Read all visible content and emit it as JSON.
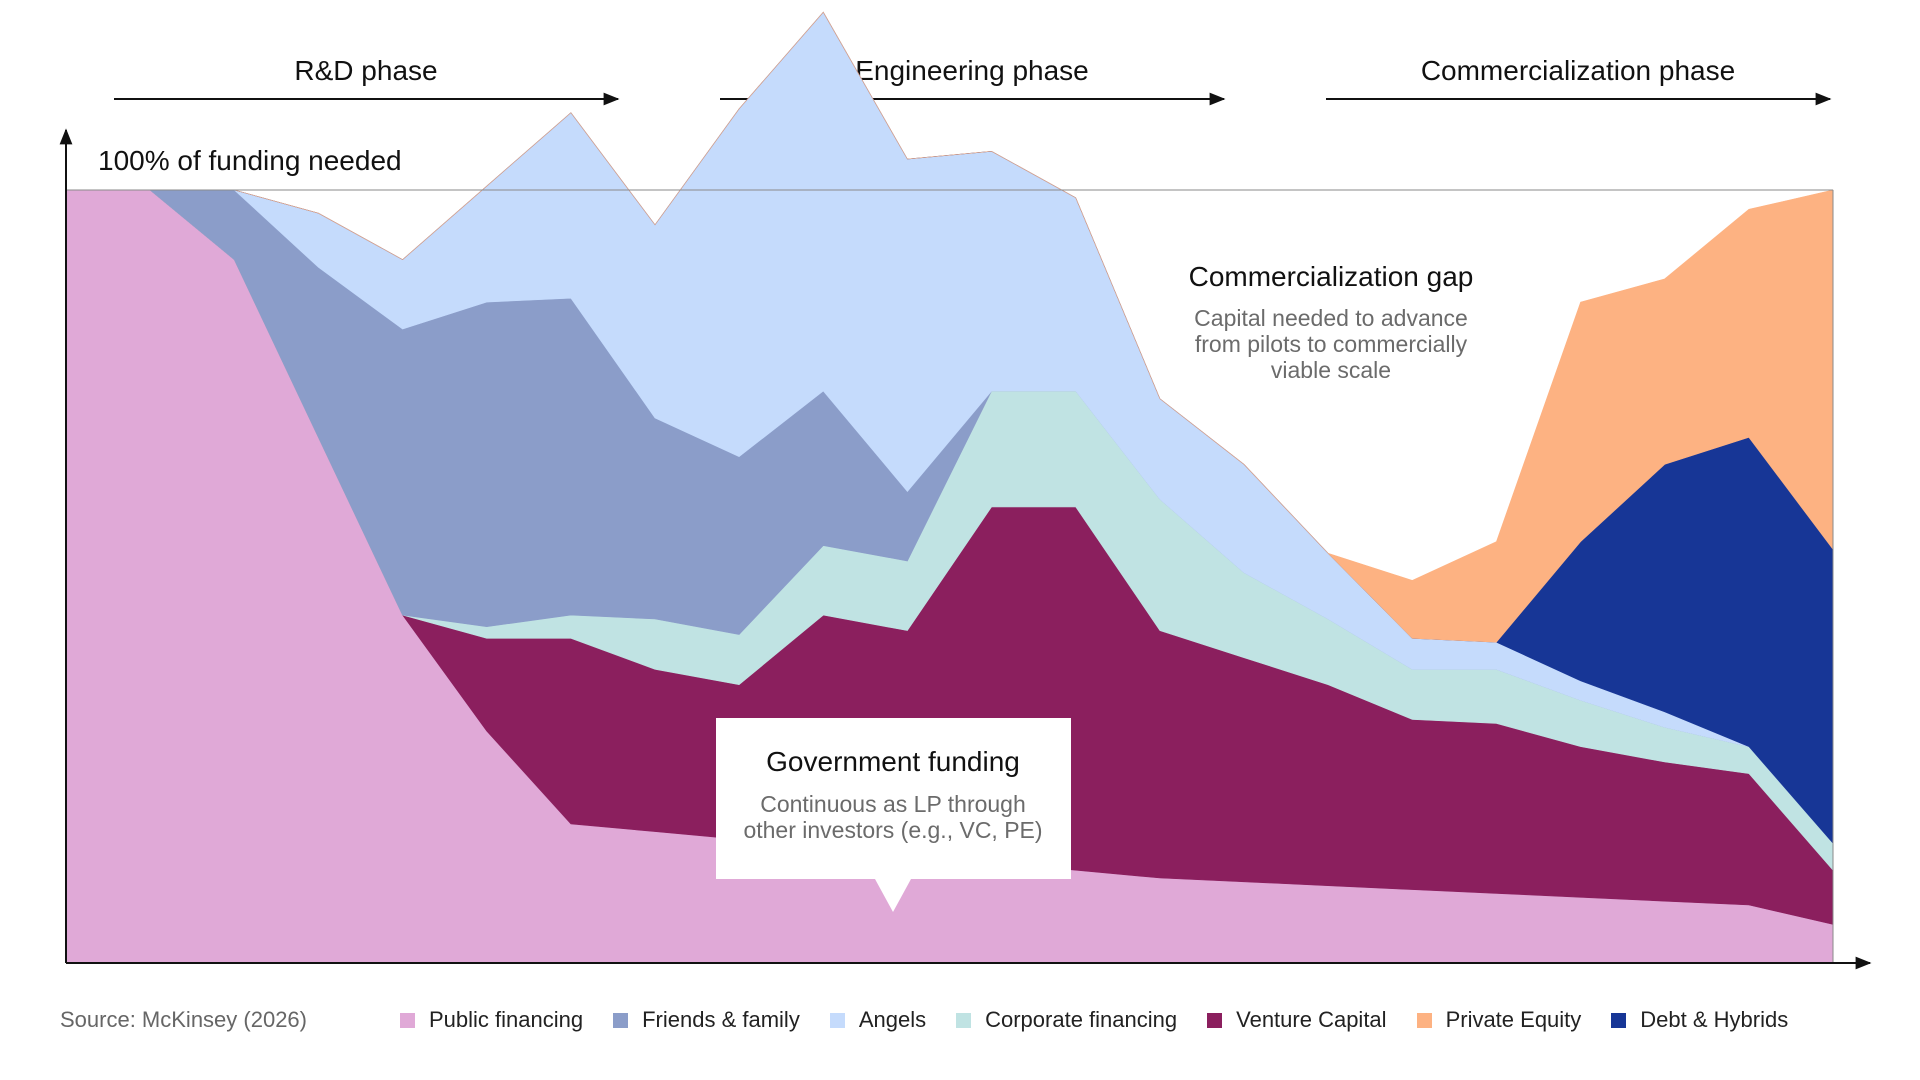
{
  "chart_data": {
    "type": "area",
    "stacked": true,
    "normalized": true,
    "y_axis_label": "100% of funding needed",
    "ylim": [
      0,
      100
    ],
    "x": [
      0,
      1,
      2,
      3,
      4,
      5,
      6,
      7,
      8,
      9,
      10,
      11,
      12,
      13,
      14,
      15,
      16,
      17,
      18,
      19,
      20,
      21
    ],
    "phases": [
      {
        "label": "R&D phase"
      },
      {
        "label": "Engineering phase"
      },
      {
        "label": "Commercialization phase"
      }
    ],
    "series": [
      {
        "name": "Public financing",
        "color": "#e0a9d7",
        "values": [
          100,
          100,
          91,
          68,
          45,
          30,
          18,
          17,
          16,
          15,
          14,
          13,
          12,
          11,
          10.5,
          10,
          9.5,
          9,
          8.5,
          8,
          7.5,
          5
        ]
      },
      {
        "name": "Venture Capital",
        "color": "#8b1f5e",
        "values": [
          0,
          0,
          0,
          0,
          0,
          12,
          24,
          21,
          20,
          30,
          29,
          46,
          47,
          32,
          29,
          26,
          22,
          22,
          19.5,
          18,
          17,
          7
        ]
      },
      {
        "name": "Corporate financing",
        "color": "#c0e3e3",
        "values": [
          0,
          0,
          0,
          0,
          0,
          1.5,
          3,
          6.5,
          6.5,
          9,
          9,
          15,
          15,
          17,
          11,
          8.5,
          6.5,
          7,
          6,
          4.5,
          3.5,
          3.5
        ]
      },
      {
        "name": "Friends & family",
        "color": "#8b9dc9",
        "values": [
          0,
          0,
          9,
          22,
          37,
          42,
          41,
          26,
          23,
          20,
          9,
          0,
          0,
          0,
          0,
          0,
          0,
          0,
          0,
          0,
          0,
          0
        ]
      },
      {
        "name": "Angels",
        "color": "#c5dbfc",
        "values": [
          0,
          0,
          0,
          7,
          9,
          15,
          24,
          25,
          45,
          49,
          43,
          31,
          25,
          13,
          14,
          8.5,
          4,
          3.5,
          2.5,
          2,
          0,
          0
        ]
      },
      {
        "name": "Debt & Hybrids",
        "color": "#173696",
        "values": [
          0,
          0,
          0,
          0,
          0,
          0,
          0,
          0,
          0,
          0,
          0,
          0,
          0,
          0,
          0,
          0,
          0,
          0,
          18,
          32,
          40,
          38
        ]
      },
      {
        "name": "Private Equity",
        "color": "#fdb282",
        "values": [
          0,
          0,
          0,
          0,
          0,
          0,
          0,
          0,
          0,
          0,
          0,
          0,
          0,
          0,
          0,
          0,
          7.5,
          13,
          31,
          24,
          29.5,
          46.5
        ]
      }
    ],
    "annotations": [
      {
        "title": "Commercialization gap",
        "text": [
          "Capital needed to advance",
          "from pilots to commercially",
          "viable scale"
        ]
      },
      {
        "title": "Government funding",
        "text": [
          "Continuous as LP through",
          "other investors (e.g., VC, PE)"
        ]
      }
    ]
  },
  "footer": {
    "source": "Source: McKinsey (2026)"
  },
  "legend": [
    {
      "label": "Public financing",
      "color": "#e0a9d7"
    },
    {
      "label": "Friends & family",
      "color": "#8b9dc9"
    },
    {
      "label": "Angels",
      "color": "#c5dbfc"
    },
    {
      "label": "Corporate financing",
      "color": "#c0e3e3"
    },
    {
      "label": "Venture Capital",
      "color": "#8b1f5e"
    },
    {
      "label": "Private Equity",
      "color": "#fdb282"
    },
    {
      "label": "Debt & Hybrids",
      "color": "#173696"
    }
  ]
}
